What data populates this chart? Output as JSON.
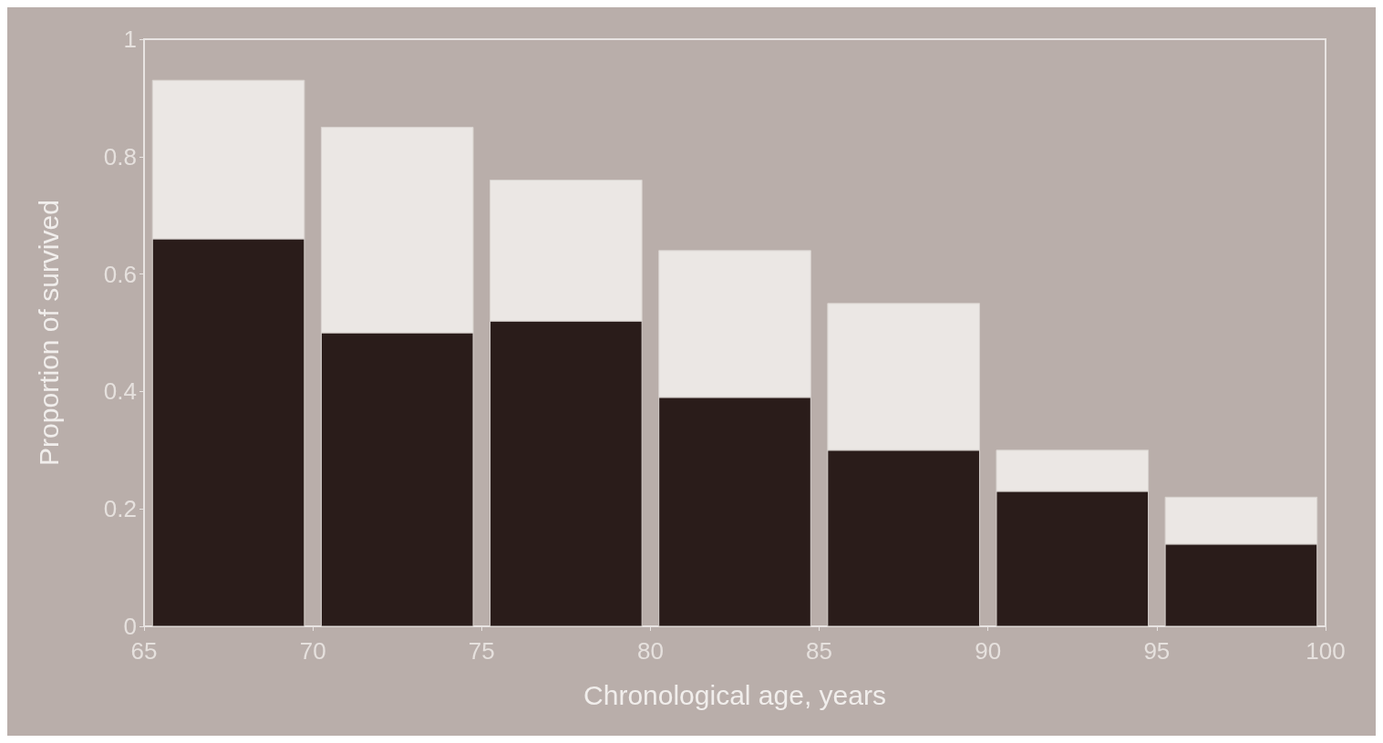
{
  "chart_data": {
    "type": "bar",
    "xlabel": "Chronological age, years",
    "ylabel": "Proportion of survived",
    "x": [
      67.5,
      72.5,
      77.5,
      82.5,
      87.5,
      92.5,
      97.5
    ],
    "stacked": true,
    "series": [
      {
        "color": "#2a1c1a",
        "values": [
          0.66,
          0.5,
          0.52,
          0.39,
          0.3,
          0.23,
          0.14
        ]
      },
      {
        "color": "#ebe7e4",
        "values": [
          0.27,
          0.35,
          0.24,
          0.25,
          0.25,
          0.07,
          0.08
        ]
      }
    ],
    "xlim": [
      65,
      100
    ],
    "xticks": [
      65,
      70,
      75,
      80,
      85,
      90,
      95,
      100
    ],
    "ylim": [
      0,
      1
    ],
    "yticks": [
      0,
      0.2,
      0.4,
      0.6,
      0.8,
      1
    ],
    "grid": false
  }
}
